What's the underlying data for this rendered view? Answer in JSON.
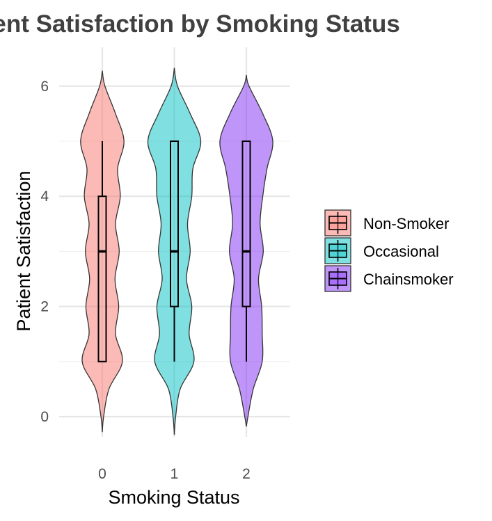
{
  "chart_data": {
    "type": "violin",
    "title": "Patient Satisfaction by Smoking Status",
    "xlabel": "Smoking Status",
    "ylabel": "Patient Satisfaction",
    "categories": [
      "0",
      "1",
      "2"
    ],
    "ylim": [
      -0.4,
      6.5
    ],
    "yticks": [
      0,
      2,
      4,
      6
    ],
    "grid": true,
    "legend": {
      "position": "right",
      "entries": [
        {
          "label": "Non-Smoker",
          "color": "#F8766D"
        },
        {
          "label": "Occasional",
          "color": "#00BFC4"
        },
        {
          "label": "Chainsmoker",
          "color": "#7F2BF6"
        }
      ]
    },
    "series": [
      {
        "category": "0",
        "color": "#F8766D",
        "violin": {
          "y": [
            -0.28,
            0,
            0.5,
            1,
            1.5,
            2,
            2.5,
            3,
            3.5,
            4,
            4.5,
            5,
            5.5,
            6,
            6.28
          ],
          "width": [
            0.0,
            0.05,
            0.25,
            0.76,
            0.5,
            0.62,
            0.48,
            0.64,
            0.5,
            0.68,
            0.58,
            0.82,
            0.5,
            0.1,
            0.0
          ]
        },
        "box": {
          "min": 1,
          "q1": 1,
          "median": 3,
          "q3": 4,
          "max": 5
        }
      },
      {
        "category": "1",
        "color": "#00BFC4",
        "violin": {
          "y": [
            -0.33,
            0,
            0.5,
            1,
            1.5,
            2,
            2.5,
            3,
            3.5,
            4,
            4.5,
            5,
            5.5,
            6,
            6.33
          ],
          "width": [
            0.0,
            0.05,
            0.22,
            0.74,
            0.56,
            0.66,
            0.46,
            0.6,
            0.5,
            0.66,
            0.7,
            1.0,
            0.6,
            0.12,
            0.0
          ]
        },
        "box": {
          "min": 1,
          "q1": 2,
          "median": 3,
          "q3": 5,
          "max": 5
        }
      },
      {
        "category": "2",
        "color": "#7F2BF6",
        "violin": {
          "y": [
            -0.18,
            0,
            0.5,
            1,
            1.5,
            2,
            2.5,
            3,
            3.5,
            4,
            4.5,
            5,
            5.5,
            6,
            6.2
          ],
          "width": [
            0.0,
            0.06,
            0.26,
            0.6,
            0.6,
            0.58,
            0.46,
            0.64,
            0.52,
            0.62,
            0.78,
            1.0,
            0.62,
            0.1,
            0.0
          ]
        },
        "box": {
          "min": 1,
          "q1": 2,
          "median": 3,
          "q3": 5,
          "max": 5
        }
      }
    ]
  }
}
